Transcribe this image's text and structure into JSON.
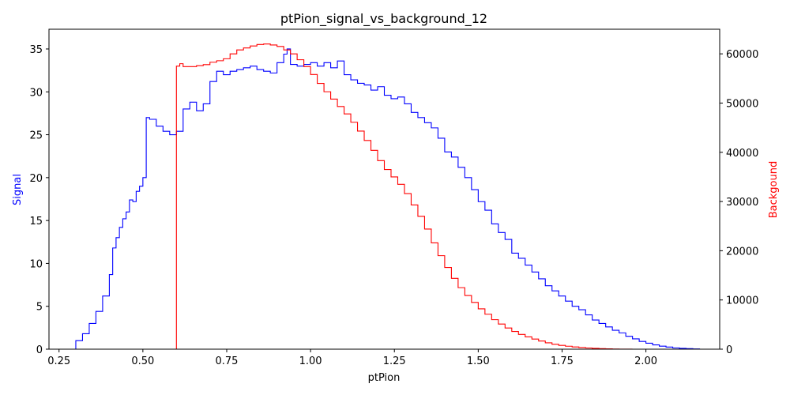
{
  "chart_data": {
    "type": "histogram",
    "title": "ptPion_signal_vs_background_12",
    "xlabel": "ptPion",
    "xlim": [
      0.22,
      2.22
    ],
    "x_ticks": [
      "0.25",
      "0.50",
      "0.75",
      "1.00",
      "1.25",
      "1.50",
      "1.75",
      "2.00"
    ],
    "grid": false,
    "left_axis": {
      "label": "Signal",
      "color": "#0000ff",
      "ylim": [
        0,
        37.3
      ],
      "ticks": [
        "0",
        "5",
        "10",
        "15",
        "20",
        "25",
        "30",
        "35"
      ]
    },
    "right_axis": {
      "label": "Backgound",
      "color": "#ff0000",
      "ylim": [
        0,
        65000
      ],
      "ticks": [
        "0",
        "10000",
        "20000",
        "30000",
        "40000",
        "50000",
        "60000"
      ]
    },
    "series": [
      {
        "axis": "left",
        "color": "#0000ff",
        "x": [
          0.3,
          0.32,
          0.34,
          0.36,
          0.38,
          0.4,
          0.41,
          0.42,
          0.43,
          0.44,
          0.45,
          0.46,
          0.47,
          0.48,
          0.49,
          0.5,
          0.51,
          0.52,
          0.54,
          0.56,
          0.58,
          0.6,
          0.62,
          0.64,
          0.66,
          0.68,
          0.7,
          0.72,
          0.74,
          0.76,
          0.78,
          0.8,
          0.82,
          0.84,
          0.86,
          0.88,
          0.9,
          0.92,
          0.93,
          0.94,
          0.96,
          0.98,
          1.0,
          1.02,
          1.04,
          1.06,
          1.08,
          1.1,
          1.12,
          1.14,
          1.16,
          1.18,
          1.2,
          1.22,
          1.24,
          1.26,
          1.28,
          1.3,
          1.32,
          1.34,
          1.36,
          1.38,
          1.4,
          1.42,
          1.44,
          1.46,
          1.48,
          1.5,
          1.52,
          1.54,
          1.56,
          1.58,
          1.6,
          1.62,
          1.64,
          1.66,
          1.68,
          1.7,
          1.72,
          1.74,
          1.76,
          1.78,
          1.8,
          1.82,
          1.84,
          1.86,
          1.88,
          1.9,
          1.92,
          1.94,
          1.96,
          1.98,
          2.0,
          2.02,
          2.04,
          2.06,
          2.08,
          2.1,
          2.12,
          2.14,
          2.16
        ],
        "y": [
          1.0,
          1.8,
          3.0,
          4.4,
          6.2,
          8.7,
          11.8,
          13.0,
          14.2,
          15.2,
          16.0,
          17.4,
          17.2,
          18.4,
          19.0,
          20.0,
          27.0,
          26.8,
          26.0,
          25.4,
          25.0,
          25.4,
          28.0,
          28.8,
          27.8,
          28.6,
          31.2,
          32.4,
          32.0,
          32.4,
          32.6,
          32.8,
          33.0,
          32.6,
          32.4,
          32.2,
          33.4,
          34.4,
          35.0,
          33.2,
          33.0,
          33.2,
          33.4,
          33.0,
          33.4,
          32.8,
          33.6,
          32.0,
          31.4,
          31.0,
          30.8,
          30.2,
          30.6,
          29.6,
          29.2,
          29.4,
          28.6,
          27.6,
          27.0,
          26.4,
          25.8,
          24.6,
          23.0,
          22.4,
          21.2,
          20.0,
          18.6,
          17.2,
          16.2,
          14.6,
          13.6,
          12.8,
          11.2,
          10.6,
          9.8,
          9.0,
          8.2,
          7.4,
          6.8,
          6.2,
          5.6,
          5.0,
          4.6,
          4.0,
          3.4,
          3.0,
          2.6,
          2.2,
          1.9,
          1.5,
          1.2,
          0.9,
          0.7,
          0.5,
          0.35,
          0.25,
          0.15,
          0.1,
          0.06,
          0.03,
          0.0
        ]
      },
      {
        "axis": "right",
        "color": "#ff0000",
        "x": [
          0.6,
          0.61,
          0.62,
          0.64,
          0.66,
          0.68,
          0.7,
          0.72,
          0.74,
          0.76,
          0.78,
          0.8,
          0.82,
          0.84,
          0.86,
          0.88,
          0.9,
          0.92,
          0.94,
          0.96,
          0.98,
          1.0,
          1.02,
          1.04,
          1.06,
          1.08,
          1.1,
          1.12,
          1.14,
          1.16,
          1.18,
          1.2,
          1.22,
          1.24,
          1.26,
          1.28,
          1.3,
          1.32,
          1.34,
          1.36,
          1.38,
          1.4,
          1.42,
          1.44,
          1.46,
          1.48,
          1.5,
          1.52,
          1.54,
          1.56,
          1.58,
          1.6,
          1.62,
          1.64,
          1.66,
          1.68,
          1.7,
          1.72,
          1.74,
          1.76,
          1.78,
          1.8,
          1.82,
          1.84,
          1.86,
          1.88,
          1.9,
          1.92,
          1.94
        ],
        "y": [
          57500,
          58000,
          57400,
          57400,
          57600,
          57800,
          58300,
          58600,
          59000,
          60000,
          60800,
          61200,
          61600,
          61900,
          62000,
          61800,
          61500,
          60800,
          60000,
          58800,
          57400,
          55800,
          54000,
          52300,
          50800,
          49300,
          47800,
          46100,
          44300,
          42400,
          40400,
          38300,
          36500,
          35000,
          33500,
          31600,
          29300,
          27000,
          24400,
          21600,
          19000,
          16600,
          14400,
          12500,
          10900,
          9500,
          8200,
          7100,
          6000,
          5100,
          4300,
          3600,
          3000,
          2500,
          2050,
          1650,
          1300,
          1000,
          780,
          600,
          450,
          330,
          240,
          170,
          110,
          70,
          40,
          20,
          10
        ]
      }
    ]
  }
}
